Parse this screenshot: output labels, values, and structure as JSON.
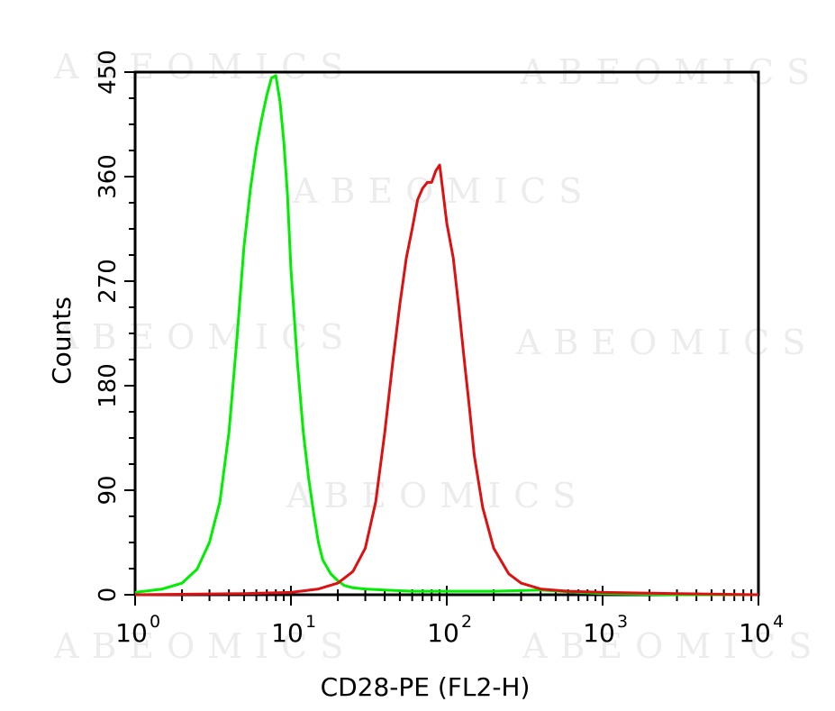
{
  "watermark": {
    "text": "ABEOMICS"
  },
  "chart_data": {
    "type": "line",
    "title": "",
    "xlabel": "CD28-PE (FL2-H)",
    "ylabel": "Counts",
    "xscale": "log",
    "xlim": [
      1,
      10000
    ],
    "ylim": [
      0,
      450
    ],
    "x_ticks": [
      {
        "base": "10",
        "exp": "0",
        "value": 1
      },
      {
        "base": "10",
        "exp": "1",
        "value": 10
      },
      {
        "base": "10",
        "exp": "2",
        "value": 100
      },
      {
        "base": "10",
        "exp": "3",
        "value": 1000
      },
      {
        "base": "10",
        "exp": "4",
        "value": 10000
      }
    ],
    "y_ticks": [
      "0",
      "90",
      "180",
      "270",
      "360",
      "450"
    ],
    "grid": false,
    "legend": "none",
    "series": [
      {
        "color": "#00ee00",
        "x": [
          1,
          1.5,
          2,
          2.5,
          3,
          3.5,
          4,
          4.5,
          5,
          5.5,
          6,
          6.5,
          7,
          7.5,
          8,
          8.5,
          9,
          9.5,
          10,
          11,
          12,
          13,
          14,
          15,
          16,
          18,
          20,
          22,
          25,
          30,
          40,
          60,
          100,
          200,
          400,
          700,
          1000,
          3000,
          10000
        ],
        "y": [
          2,
          5,
          10,
          22,
          45,
          80,
          140,
          220,
          300,
          350,
          385,
          410,
          430,
          445,
          447,
          425,
          390,
          345,
          280,
          200,
          140,
          100,
          70,
          45,
          30,
          18,
          12,
          8,
          6,
          5,
          4,
          3,
          3,
          3,
          4,
          2,
          1,
          0,
          0
        ]
      },
      {
        "color": "#dd1111",
        "x": [
          1,
          5,
          10,
          15,
          20,
          25,
          30,
          35,
          40,
          45,
          50,
          55,
          60,
          65,
          70,
          75,
          80,
          85,
          90,
          95,
          100,
          110,
          120,
          130,
          140,
          150,
          170,
          200,
          250,
          300,
          400,
          600,
          1000,
          3000,
          10000
        ],
        "y": [
          0,
          1,
          2,
          5,
          10,
          20,
          40,
          80,
          140,
          200,
          250,
          290,
          315,
          340,
          350,
          355,
          355,
          365,
          370,
          345,
          320,
          290,
          245,
          200,
          160,
          120,
          75,
          40,
          18,
          10,
          5,
          3,
          2,
          1,
          0
        ]
      }
    ]
  }
}
